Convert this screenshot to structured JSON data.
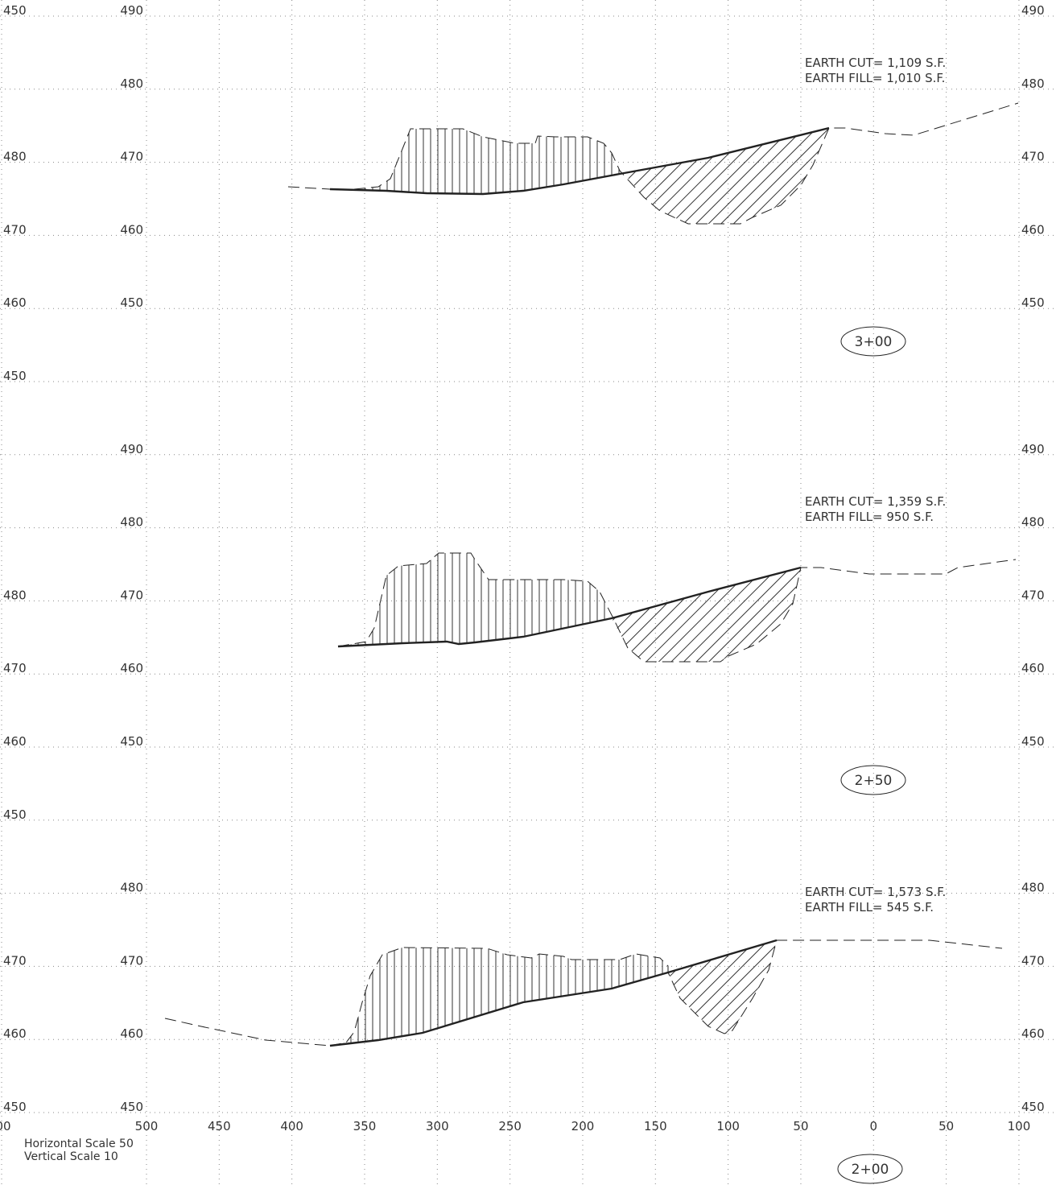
{
  "sections": [
    {
      "station": "3+00",
      "cut": "EARTH CUT= 1,109 S.F.",
      "fill": "EARTH FILL= 1,010 S.F."
    },
    {
      "station": "2+50",
      "cut": "EARTH CUT= 1,359 S.F.",
      "fill": "EARTH FILL= 950 S.F."
    },
    {
      "station": "2+00",
      "cut": "EARTH CUT= 1,573 S.F.",
      "fill": "EARTH FILL= 545 S.F."
    }
  ],
  "elevation_labels": {
    "left": [
      "450",
      "480",
      "470",
      "460",
      "450",
      "480",
      "470",
      "460",
      "450",
      "470",
      "460",
      "450"
    ],
    "middle": [
      "490",
      "480",
      "470",
      "460",
      "450",
      "490",
      "480",
      "470",
      "460",
      "450",
      "480",
      "470",
      "460",
      "450"
    ],
    "right": [
      "490",
      "480",
      "470",
      "460",
      "450",
      "490",
      "480",
      "470",
      "460",
      "450",
      "480",
      "470",
      "460",
      "450"
    ]
  },
  "offset_labels": [
    "00",
    "500",
    "450",
    "400",
    "350",
    "300",
    "250",
    "200",
    "150",
    "100",
    "50",
    "0",
    "50",
    "100"
  ],
  "scale_note": {
    "horizontal": "Horizontal Scale 50",
    "vertical": "Vertical Scale 10"
  }
}
